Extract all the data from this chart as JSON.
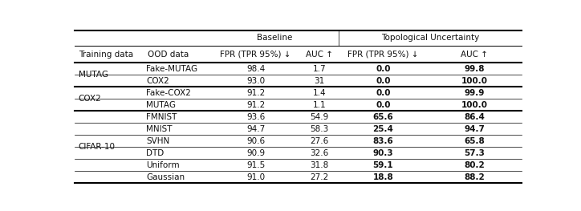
{
  "header_row": [
    "Training data",
    "OOD data",
    "FPR (TPR 95%) ↓",
    "AUC ↑",
    "FPR (TPR 95%) ↓",
    "AUC ↑"
  ],
  "title_baseline": "Baseline",
  "title_tu": "Topological Uncertainty",
  "rows": [
    [
      "MUTAG",
      "Fake-MUTAG",
      "98.4",
      "1.7",
      "0.0",
      "99.8"
    ],
    [
      "MUTAG",
      "COX2",
      "93.0",
      "31",
      "0.0",
      "100.0"
    ],
    [
      "COX2",
      "Fake-COX2",
      "91.2",
      "1.4",
      "0.0",
      "99.9"
    ],
    [
      "COX2",
      "MUTAG",
      "91.2",
      "1.1",
      "0.0",
      "100.0"
    ],
    [
      "CIFAR-10",
      "FMNIST",
      "93.6",
      "54.9",
      "65.6",
      "86.4"
    ],
    [
      "CIFAR-10",
      "MNIST",
      "94.7",
      "58.3",
      "25.4",
      "94.7"
    ],
    [
      "CIFAR-10",
      "SVHN",
      "90.6",
      "27.6",
      "83.6",
      "65.8"
    ],
    [
      "CIFAR-10",
      "DTD",
      "90.9",
      "32.6",
      "90.3",
      "57.3"
    ],
    [
      "CIFAR-10",
      "Uniform",
      "91.5",
      "31.8",
      "59.1",
      "80.2"
    ],
    [
      "CIFAR-10",
      "Gaussian",
      "91.0",
      "27.2",
      "18.8",
      "88.2"
    ]
  ],
  "groups": [
    {
      "label": "MUTAG",
      "start": 0,
      "end": 1
    },
    {
      "label": "COX2",
      "start": 2,
      "end": 3
    },
    {
      "label": "CIFAR-10",
      "start": 4,
      "end": 9
    }
  ],
  "group_thick_after": [
    1,
    3
  ],
  "col_bounds": [
    0.0,
    0.155,
    0.305,
    0.505,
    0.59,
    0.79,
    1.0
  ],
  "line_color": "#000000",
  "text_color": "#111111",
  "fs_title": 7.5,
  "fs_header": 7.5,
  "fs_data": 7.5
}
